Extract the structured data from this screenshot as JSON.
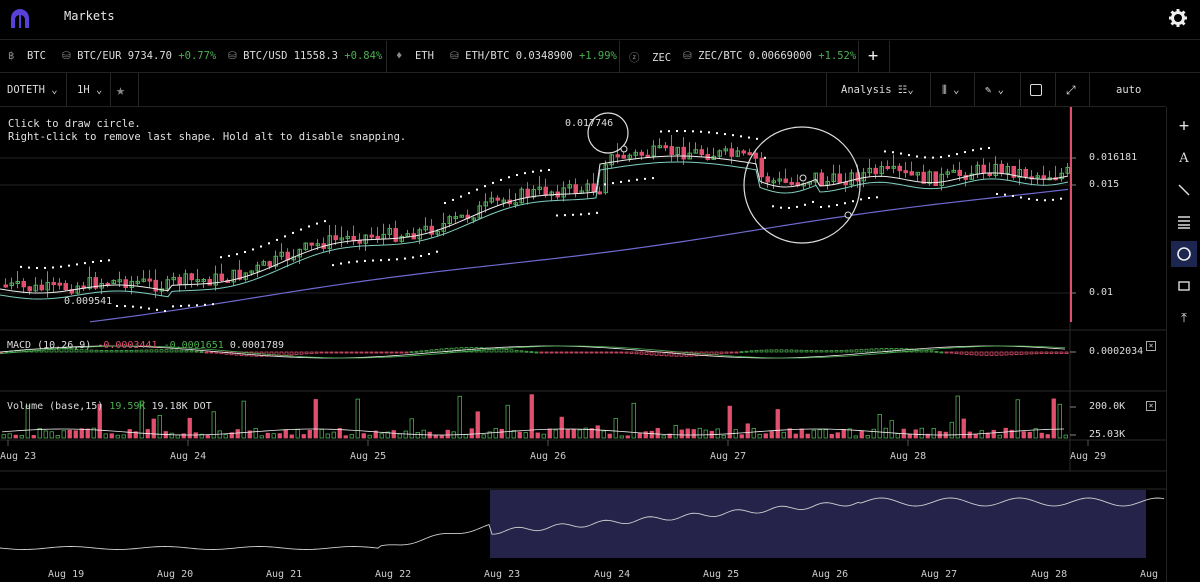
{
  "app": {
    "title": "Markets"
  },
  "tickers": [
    {
      "label": "BTC",
      "icon": "bitcoin-icon"
    },
    {
      "label": "BTC/EUR 9734.70",
      "change": "+0.77%",
      "icon": "pair-icon"
    },
    {
      "label": "BTC/USD 11558.3",
      "change": "+0.84%",
      "icon": "pair-icon"
    },
    {
      "label": "ETH",
      "icon": "ethereum-icon"
    },
    {
      "label": "ETH/BTC 0.0348900",
      "change": "+1.99%",
      "icon": "pair-icon"
    },
    {
      "label": "ZEC",
      "icon": "zcash-icon"
    },
    {
      "label": "ZEC/BTC 0.00669000",
      "change": "+1.52%",
      "icon": "pair-icon"
    }
  ],
  "toolbar": {
    "symbol": "DOTETH",
    "interval": "1H",
    "analysis": "Analysis",
    "scale": "auto"
  },
  "hints": {
    "line1": "Click to draw circle.",
    "line2": "Right-click to remove last shape. Hold alt to disable snapping."
  },
  "chart": {
    "high_label": "0.017746",
    "low_label": "0.009541",
    "price_axis": [
      "0.016181",
      "0.015",
      "0.01"
    ],
    "time_axis": [
      "Aug 23",
      "Aug 24",
      "Aug 25",
      "Aug 26",
      "Aug 27",
      "Aug 28",
      "Aug 29"
    ]
  },
  "macd": {
    "label": "MACD (10,26,9)",
    "v1": "-0.0003441",
    "v2": "-0.0001651",
    "v3": "0.0001789",
    "axis": "0.0002034"
  },
  "volume": {
    "label": "Volume (base,15)",
    "v1": "19.59K",
    "v2": "19.18K DOT",
    "axis": [
      "200.0K",
      "25.03K"
    ]
  },
  "navigator": {
    "axis": [
      "Aug 19",
      "Aug 20",
      "Aug 21",
      "Aug 22",
      "Aug 23",
      "Aug 24",
      "Aug 25",
      "Aug 26",
      "Aug 27",
      "Aug 28",
      "Aug"
    ]
  },
  "colors": {
    "up": "#4caf50",
    "down": "#e0506e",
    "ma_slow": "#6e6ad0",
    "ma_fast": "#7fd0c0",
    "selection": "#25234a"
  }
}
